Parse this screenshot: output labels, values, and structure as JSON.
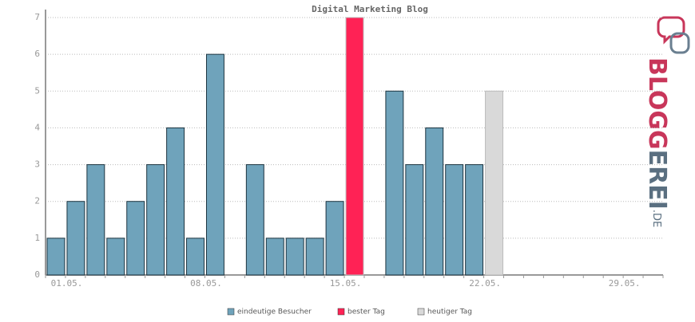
{
  "chart_data": {
    "type": "bar",
    "title": "Digital Marketing Blog",
    "categories": [
      "01.05.",
      null,
      null,
      null,
      null,
      null,
      null,
      "08.05.",
      null,
      null,
      null,
      null,
      null,
      null,
      "15.05.",
      null,
      null,
      null,
      null,
      null,
      null,
      "22.05.",
      null,
      null,
      null,
      null,
      null,
      null,
      "29.05.",
      null,
      null
    ],
    "series": [
      {
        "name": "eindeutige Besucher",
        "color": "#6fa3bb",
        "values": [
          1,
          2,
          3,
          1,
          2,
          3,
          4,
          1,
          6,
          0,
          3,
          1,
          1,
          1,
          2,
          null,
          0,
          5,
          3,
          4,
          3,
          3,
          null,
          null,
          null,
          null,
          null,
          null,
          null,
          null,
          null
        ]
      },
      {
        "name": "bester Tag",
        "color": "#ff2255",
        "values": [
          null,
          null,
          null,
          null,
          null,
          null,
          null,
          null,
          null,
          null,
          null,
          null,
          null,
          null,
          null,
          7,
          null,
          null,
          null,
          null,
          null,
          null,
          null,
          null,
          null,
          null,
          null,
          null,
          null,
          null,
          null
        ]
      },
      {
        "name": "heutiger Tag",
        "color": "#d9d9d9",
        "values": [
          null,
          null,
          null,
          null,
          null,
          null,
          null,
          null,
          null,
          null,
          null,
          null,
          null,
          null,
          null,
          null,
          null,
          null,
          null,
          null,
          null,
          null,
          5,
          null,
          null,
          null,
          null,
          null,
          null,
          null,
          null
        ]
      }
    ],
    "ylim": [
      0,
      7
    ],
    "yticks": [
      0,
      1,
      2,
      3,
      4,
      5,
      6,
      7
    ],
    "grid": true
  },
  "logo": {
    "part1": "BLOGG",
    "part2": "EREI",
    "suffix": ".DE"
  }
}
